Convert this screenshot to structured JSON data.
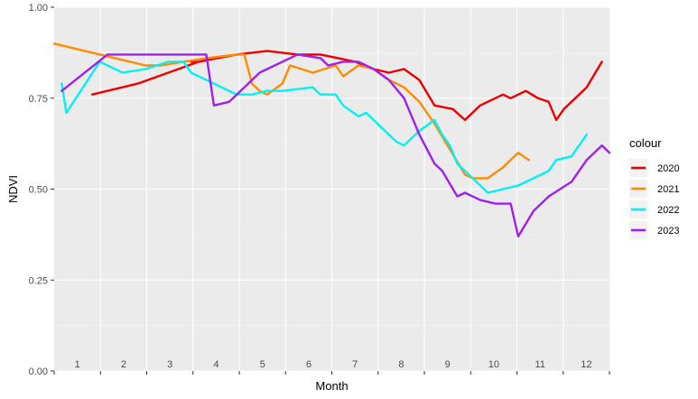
{
  "chart_data": {
    "type": "line",
    "xlabel": "Month",
    "ylabel": "NDVI",
    "xlim": [
      0,
      365
    ],
    "ylim": [
      0,
      1
    ],
    "y_ticks": [
      "0.00",
      "0.25",
      "0.50",
      "0.75",
      "1.00"
    ],
    "y_tick_values": [
      0,
      0.25,
      0.5,
      0.75,
      1.0
    ],
    "month_labels": [
      "1",
      "2",
      "3",
      "4",
      "5",
      "6",
      "7",
      "8",
      "9",
      "10",
      "11",
      "12"
    ],
    "grid": true,
    "legend_title": "colour",
    "legend_position": "right",
    "series": [
      {
        "name": "2020",
        "color": "#ee0000",
        "x": [
          25,
          55,
          95,
          90,
          95,
          120,
          140,
          160,
          175,
          198,
          210,
          220,
          230,
          240,
          250,
          262,
          270,
          280,
          295,
          300,
          310,
          318,
          325,
          330,
          335,
          340,
          350,
          360
        ],
        "y": [
          0.76,
          0.79,
          0.85,
          0.85,
          0.85,
          0.87,
          0.88,
          0.87,
          0.87,
          0.85,
          0.83,
          0.82,
          0.83,
          0.8,
          0.73,
          0.72,
          0.69,
          0.73,
          0.76,
          0.75,
          0.77,
          0.75,
          0.74,
          0.69,
          0.72,
          0.74,
          0.78,
          0.85
        ]
      },
      {
        "name": "2021",
        "color": "#ff8c00",
        "x": [
          0,
          40,
          60,
          70,
          100,
          120,
          125,
          130,
          135,
          140,
          150,
          155,
          170,
          185,
          190,
          200,
          210,
          220,
          230,
          240,
          250,
          270,
          275,
          285,
          295,
          305,
          312
        ],
        "y": [
          0.9,
          0.86,
          0.84,
          0.84,
          0.86,
          0.87,
          0.87,
          0.79,
          0.77,
          0.76,
          0.79,
          0.84,
          0.82,
          0.84,
          0.81,
          0.84,
          0.83,
          0.8,
          0.78,
          0.74,
          0.68,
          0.54,
          0.53,
          0.53,
          0.56,
          0.6,
          0.58
        ]
      },
      {
        "name": "2022",
        "color": "#00f2f2",
        "x": [
          5,
          8,
          30,
          45,
          60,
          75,
          85,
          90,
          100,
          110,
          120,
          130,
          140,
          150,
          170,
          175,
          185,
          190,
          200,
          205,
          210,
          220,
          225,
          230,
          240,
          250,
          255,
          260,
          265,
          270,
          285,
          295,
          305,
          315,
          325,
          330,
          340,
          350
        ],
        "y": [
          0.79,
          0.71,
          0.85,
          0.82,
          0.83,
          0.85,
          0.85,
          0.82,
          0.8,
          0.78,
          0.76,
          0.76,
          0.77,
          0.77,
          0.78,
          0.76,
          0.76,
          0.73,
          0.7,
          0.71,
          0.69,
          0.65,
          0.63,
          0.62,
          0.66,
          0.69,
          0.65,
          0.62,
          0.57,
          0.55,
          0.49,
          0.5,
          0.51,
          0.53,
          0.55,
          0.58,
          0.59,
          0.65
        ]
      },
      {
        "name": "2023",
        "color": "#a020f0",
        "x": [
          5,
          35,
          60,
          90,
          95,
          100,
          105,
          115,
          125,
          135,
          140,
          150,
          160,
          175,
          180,
          190,
          200,
          210,
          220,
          230,
          240,
          250,
          255,
          265,
          270,
          280,
          290,
          300,
          305,
          315,
          325,
          340,
          350,
          360,
          365
        ],
        "y": [
          0.77,
          0.87,
          0.87,
          0.87,
          0.87,
          0.87,
          0.73,
          0.74,
          0.78,
          0.82,
          0.83,
          0.85,
          0.87,
          0.86,
          0.84,
          0.85,
          0.85,
          0.83,
          0.8,
          0.75,
          0.65,
          0.57,
          0.55,
          0.48,
          0.49,
          0.47,
          0.46,
          0.46,
          0.37,
          0.44,
          0.48,
          0.52,
          0.58,
          0.62,
          0.6
        ]
      }
    ]
  }
}
